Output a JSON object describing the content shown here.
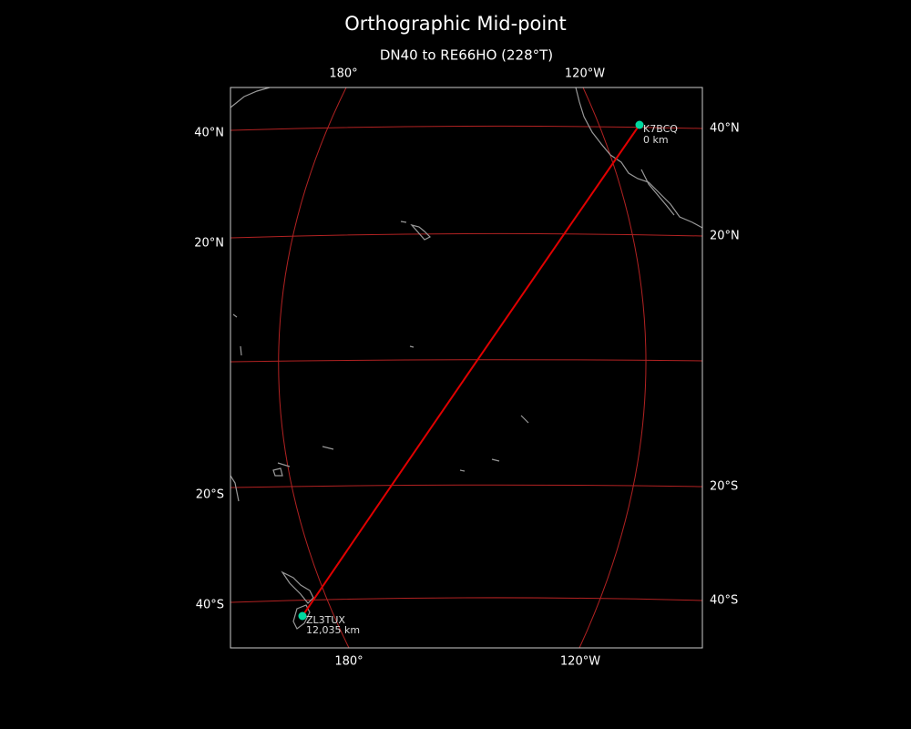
{
  "title": "Orthographic Mid-point",
  "subtitle": "DN40 to RE66HO (228°T)",
  "lon_labels_top": [
    "180°",
    "120°W"
  ],
  "lon_labels_bottom": [
    "180°",
    "120°W"
  ],
  "lat_labels_left": [
    "40°N",
    "20°N",
    "20°S",
    "40°S"
  ],
  "lat_labels_right": [
    "40°N",
    "20°N",
    "20°S",
    "40°S"
  ],
  "stations": [
    {
      "call": "K7BCQ",
      "distance": "0 km"
    },
    {
      "call": "ZL3TUX",
      "distance": "12,035 km"
    }
  ]
}
